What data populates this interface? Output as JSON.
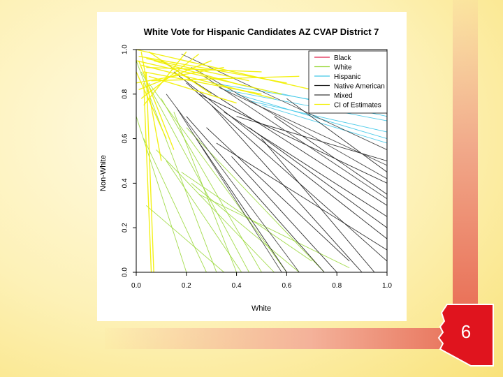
{
  "slide": {
    "page_number": "6"
  },
  "colors": {
    "black_series": "#e0204a",
    "white_series": "#9ad83a",
    "hispanic_series": "#40c8e8",
    "native_series": "#1a1a1a",
    "mixed_series": "#3a3a3a",
    "ci_series": "#f2f000",
    "badge": "#e0141e"
  },
  "chart_data": {
    "type": "line",
    "title": "White Vote for Hispanic Candidates AZ CVAP District 7",
    "xlabel": "White",
    "ylabel": "Non-White",
    "xlim": [
      0,
      1
    ],
    "ylim": [
      0,
      1
    ],
    "xticks": [
      "0.0",
      "0.2",
      "0.4",
      "0.6",
      "0.8",
      "1.0"
    ],
    "yticks": [
      "0.0",
      "0.2",
      "0.4",
      "0.6",
      "0.8",
      "1.0"
    ],
    "grid": false,
    "legend_position": "top-right",
    "series": [
      {
        "name": "Black",
        "color_key": "black_series",
        "segments": []
      },
      {
        "name": "White",
        "color_key": "white_series",
        "segments": [
          [
            [
              0.0,
              0.95
            ],
            [
              0.32,
              0.0
            ]
          ],
          [
            [
              0.02,
              0.9
            ],
            [
              0.45,
              0.0
            ]
          ],
          [
            [
              0.05,
              0.85
            ],
            [
              0.6,
              0.0
            ]
          ],
          [
            [
              0.1,
              0.78
            ],
            [
              0.5,
              0.0
            ]
          ],
          [
            [
              0.15,
              0.72
            ],
            [
              0.4,
              0.0
            ]
          ],
          [
            [
              0.2,
              0.65
            ],
            [
              0.75,
              0.0
            ]
          ],
          [
            [
              0.03,
              0.6
            ],
            [
              0.28,
              0.0
            ]
          ],
          [
            [
              0.08,
              0.55
            ],
            [
              0.55,
              0.0
            ]
          ],
          [
            [
              0.12,
              0.5
            ],
            [
              0.42,
              0.0
            ]
          ],
          [
            [
              0.18,
              0.45
            ],
            [
              0.7,
              0.05
            ]
          ],
          [
            [
              0.22,
              0.4
            ],
            [
              0.65,
              0.0
            ]
          ],
          [
            [
              0.25,
              0.35
            ],
            [
              0.85,
              0.02
            ]
          ],
          [
            [
              0.0,
              0.7
            ],
            [
              0.2,
              0.0
            ]
          ],
          [
            [
              0.04,
              0.3
            ],
            [
              0.35,
              0.0
            ]
          ]
        ]
      },
      {
        "name": "Hispanic",
        "color_key": "hispanic_series",
        "segments": [
          [
            [
              0.3,
              0.85
            ],
            [
              1.0,
              0.72
            ]
          ],
          [
            [
              0.35,
              0.82
            ],
            [
              1.0,
              0.68
            ]
          ],
          [
            [
              0.4,
              0.8
            ],
            [
              1.0,
              0.6
            ]
          ],
          [
            [
              0.45,
              0.77
            ],
            [
              1.0,
              0.63
            ]
          ],
          [
            [
              0.5,
              0.75
            ],
            [
              1.0,
              0.58
            ]
          ],
          [
            [
              0.42,
              0.84
            ],
            [
              1.0,
              0.7
            ]
          ]
        ]
      },
      {
        "name": "Native American",
        "color_key": "native_series",
        "segments": [
          [
            [
              0.1,
              0.95
            ],
            [
              1.0,
              0.3
            ]
          ],
          [
            [
              0.15,
              0.9
            ],
            [
              1.0,
              0.15
            ]
          ],
          [
            [
              0.2,
              0.85
            ],
            [
              1.0,
              0.05
            ]
          ],
          [
            [
              0.25,
              0.8
            ],
            [
              1.0,
              0.4
            ]
          ],
          [
            [
              0.3,
              0.75
            ],
            [
              0.9,
              0.0
            ]
          ],
          [
            [
              0.35,
              0.72
            ],
            [
              1.0,
              0.25
            ]
          ],
          [
            [
              0.4,
              0.7
            ],
            [
              1.0,
              0.5
            ]
          ],
          [
            [
              0.45,
              0.65
            ],
            [
              1.0,
              0.2
            ]
          ],
          [
            [
              0.5,
              0.6
            ],
            [
              0.95,
              0.0
            ]
          ],
          [
            [
              0.2,
              0.7
            ],
            [
              0.75,
              0.0
            ]
          ],
          [
            [
              0.28,
              0.65
            ],
            [
              0.85,
              0.05
            ]
          ],
          [
            [
              0.32,
              0.58
            ],
            [
              1.0,
              0.1
            ]
          ],
          [
            [
              0.38,
              0.52
            ],
            [
              0.8,
              0.0
            ]
          ],
          [
            [
              0.24,
              0.6
            ],
            [
              0.6,
              0.0
            ]
          ],
          [
            [
              0.55,
              0.7
            ],
            [
              1.0,
              0.35
            ]
          ],
          [
            [
              0.6,
              0.78
            ],
            [
              1.0,
              0.45
            ]
          ]
        ]
      },
      {
        "name": "Mixed",
        "color_key": "mixed_series",
        "segments": [
          [
            [
              0.18,
              0.98
            ],
            [
              1.0,
              0.55
            ]
          ],
          [
            [
              0.22,
              0.92
            ],
            [
              1.0,
              0.42
            ]
          ],
          [
            [
              0.27,
              0.88
            ],
            [
              1.0,
              0.33
            ]
          ],
          [
            [
              0.33,
              0.83
            ],
            [
              1.0,
              0.48
            ]
          ],
          [
            [
              0.12,
              0.8
            ],
            [
              0.65,
              0.0
            ]
          ],
          [
            [
              0.16,
              0.74
            ],
            [
              0.58,
              0.0
            ]
          ]
        ]
      },
      {
        "name": "CI of Estimates",
        "color_key": "ci_series",
        "segments": [
          [
            [
              0.0,
              1.0
            ],
            [
              0.7,
              0.82
            ]
          ],
          [
            [
              0.01,
              0.97
            ],
            [
              0.6,
              0.85
            ]
          ],
          [
            [
              0.02,
              0.93
            ],
            [
              0.55,
              0.78
            ]
          ],
          [
            [
              0.03,
              0.9
            ],
            [
              0.5,
              0.8
            ]
          ],
          [
            [
              0.04,
              0.96
            ],
            [
              0.45,
              0.86
            ]
          ],
          [
            [
              0.05,
              0.88
            ],
            [
              0.4,
              0.76
            ]
          ],
          [
            [
              0.0,
              0.85
            ],
            [
              0.35,
              0.92
            ]
          ],
          [
            [
              0.01,
              0.82
            ],
            [
              0.3,
              0.95
            ]
          ],
          [
            [
              0.02,
              0.78
            ],
            [
              0.25,
              0.98
            ]
          ],
          [
            [
              0.03,
              0.75
            ],
            [
              0.2,
              0.99
            ]
          ],
          [
            [
              0.04,
              0.92
            ],
            [
              0.5,
              0.9
            ]
          ],
          [
            [
              0.06,
              0.86
            ],
            [
              0.65,
              0.88
            ]
          ],
          [
            [
              0.0,
              0.9
            ],
            [
              0.12,
              0.6
            ]
          ],
          [
            [
              0.02,
              0.99
            ],
            [
              0.1,
              0.5
            ]
          ],
          [
            [
              0.03,
              0.85
            ],
            [
              0.06,
              0.0
            ]
          ],
          [
            [
              0.04,
              0.9
            ],
            [
              0.07,
              0.0
            ]
          ],
          [
            [
              0.01,
              0.95
            ],
            [
              0.15,
              0.55
            ]
          ],
          [
            [
              0.05,
              0.99
            ],
            [
              0.3,
              0.8
            ]
          ],
          [
            [
              0.07,
              0.95
            ],
            [
              0.42,
              0.84
            ]
          ],
          [
            [
              0.0,
              0.95
            ],
            [
              0.58,
              0.8
            ]
          ]
        ]
      }
    ]
  }
}
